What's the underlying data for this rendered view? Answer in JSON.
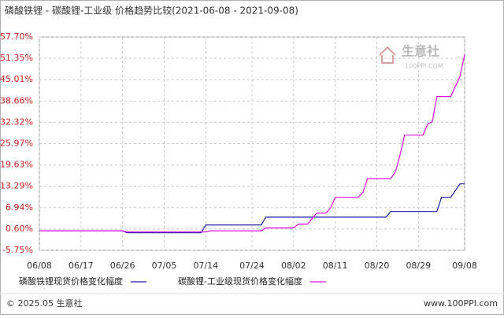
{
  "chart_data": {
    "type": "line",
    "title": "磷酸铁锂 - 碳酸锂-工业级 价格趋势比较(2021-06-08 - 2021-09-08)",
    "watermark": "生意社",
    "watermark_sub": "100PPI.COM",
    "footer_left": "© 2025.05 生意社",
    "footer_right": "www.100PPI.com",
    "xlim": [
      "06/08",
      "09/08"
    ],
    "xticks": [
      "06/08",
      "06/17",
      "06/26",
      "07/05",
      "07/14",
      "07/24",
      "08/02",
      "08/11",
      "08/20",
      "08/29",
      "09/08"
    ],
    "ylim": [
      -5.75,
      57.7
    ],
    "yticks": [
      {
        "value": 57.7,
        "label": "57.70%"
      },
      {
        "value": 51.35,
        "label": "51.35%"
      },
      {
        "value": 45.01,
        "label": "45.01%"
      },
      {
        "value": 38.66,
        "label": "38.66%"
      },
      {
        "value": 32.32,
        "label": "32.32%"
      },
      {
        "value": 25.97,
        "label": "25.97%"
      },
      {
        "value": 19.63,
        "label": "19.63%"
      },
      {
        "value": 13.29,
        "label": "13.29%"
      },
      {
        "value": 6.94,
        "label": "6.94%"
      },
      {
        "value": 0.6,
        "label": "0.60%"
      },
      {
        "value": -5.75,
        "label": "-5.75%"
      }
    ],
    "grid": true,
    "series": [
      {
        "name": "磷酸铁锂现货价格变化幅度",
        "color": "#1a1aa8",
        "x": [
          "06/08",
          "06/26",
          "06/27",
          "07/13",
          "07/14",
          "07/26",
          "07/27",
          "08/22",
          "08/23",
          "09/02",
          "09/03",
          "09/05",
          "09/07",
          "09/08"
        ],
        "values": [
          0,
          0,
          -0.5,
          -0.5,
          1.8,
          1.8,
          4.1,
          4.1,
          5.8,
          5.8,
          10,
          10,
          14,
          14
        ]
      },
      {
        "name": "碳酸锂-工业级现货价格变化幅度",
        "color": "#e010e0",
        "x": [
          "06/08",
          "06/26",
          "06/27",
          "07/14",
          "07/15",
          "07/26",
          "07/27",
          "08/02",
          "08/03",
          "08/05",
          "08/07",
          "08/09",
          "08/10",
          "08/11",
          "08/16",
          "08/17",
          "08/18",
          "08/23",
          "08/24",
          "08/25",
          "08/26",
          "08/30",
          "08/31",
          "09/01",
          "09/02",
          "09/05",
          "09/07",
          "09/08"
        ],
        "values": [
          0,
          0,
          -0.3,
          -0.3,
          0,
          0,
          0.9,
          0.9,
          2,
          2,
          5.3,
          5.3,
          6.9,
          10,
          10,
          11.5,
          15.6,
          15.6,
          17.5,
          22.4,
          28.5,
          28.5,
          31.8,
          32.5,
          40,
          40,
          46,
          52.5
        ]
      }
    ]
  }
}
